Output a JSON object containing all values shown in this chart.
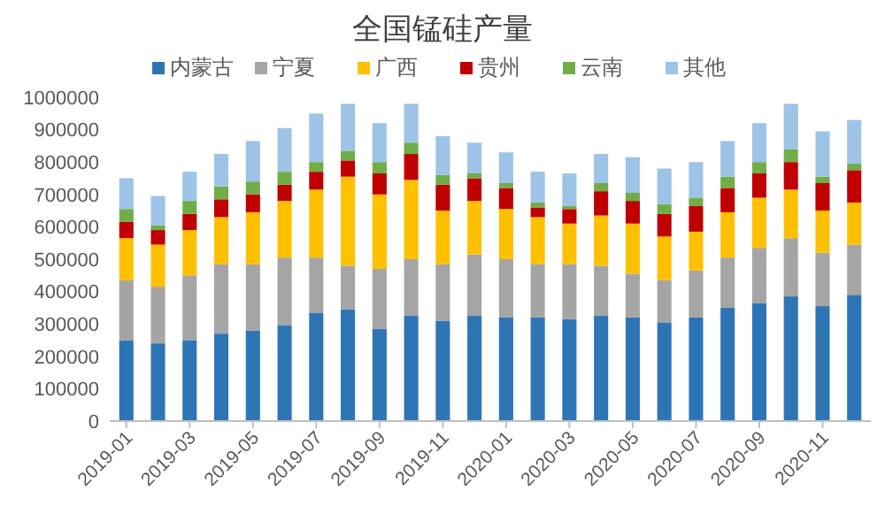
{
  "chart_data": {
    "type": "bar",
    "title": "全国锰硅产量",
    "stacked": true,
    "legend": "top",
    "grid": false,
    "categories": [
      "2019-01",
      null,
      "2019-03",
      null,
      "2019-05",
      null,
      "2019-07",
      null,
      "2019-09",
      null,
      "2019-11",
      null,
      "2020-01",
      null,
      "2020-03",
      null,
      "2020-05",
      null,
      "2020-07",
      null,
      "2020-09",
      null,
      "2020-11",
      null
    ],
    "ylim": [
      0,
      1000000
    ],
    "yticks": [
      0,
      100000,
      200000,
      300000,
      400000,
      500000,
      600000,
      700000,
      800000,
      900000,
      1000000
    ],
    "series": [
      {
        "name": "内蒙古",
        "color": "#2e75b6",
        "values": [
          250000,
          240000,
          250000,
          270000,
          280000,
          295000,
          335000,
          345000,
          285000,
          325000,
          310000,
          325000,
          320000,
          320000,
          315000,
          325000,
          320000,
          305000,
          320000,
          350000,
          365000,
          385000,
          355000,
          390000
        ]
      },
      {
        "name": "宁夏",
        "color": "#a5a5a5",
        "values": [
          185000,
          175000,
          200000,
          215000,
          205000,
          210000,
          170000,
          135000,
          185000,
          175000,
          175000,
          190000,
          180000,
          165000,
          170000,
          155000,
          135000,
          130000,
          145000,
          155000,
          170000,
          180000,
          165000,
          155000
        ]
      },
      {
        "name": "广西",
        "color": "#ffc000",
        "values": [
          130000,
          130000,
          140000,
          145000,
          160000,
          175000,
          210000,
          275000,
          230000,
          245000,
          165000,
          165000,
          155000,
          145000,
          125000,
          155000,
          155000,
          135000,
          120000,
          140000,
          155000,
          150000,
          130000,
          130000
        ]
      },
      {
        "name": "贵州",
        "color": "#c00000",
        "values": [
          50000,
          45000,
          50000,
          55000,
          55000,
          50000,
          55000,
          50000,
          65000,
          80000,
          80000,
          70000,
          65000,
          30000,
          45000,
          75000,
          70000,
          70000,
          80000,
          75000,
          75000,
          85000,
          85000,
          100000
        ]
      },
      {
        "name": "云南",
        "color": "#70ad47",
        "values": [
          40000,
          15000,
          40000,
          40000,
          40000,
          40000,
          30000,
          30000,
          35000,
          35000,
          30000,
          15000,
          15000,
          15000,
          10000,
          25000,
          25000,
          30000,
          25000,
          35000,
          35000,
          40000,
          20000,
          20000
        ]
      },
      {
        "name": "其他",
        "color": "#9dc3e6",
        "values": [
          95000,
          90000,
          90000,
          100000,
          125000,
          135000,
          150000,
          145000,
          120000,
          120000,
          120000,
          95000,
          95000,
          95000,
          100000,
          90000,
          110000,
          110000,
          110000,
          110000,
          120000,
          140000,
          140000,
          135000
        ]
      }
    ]
  }
}
